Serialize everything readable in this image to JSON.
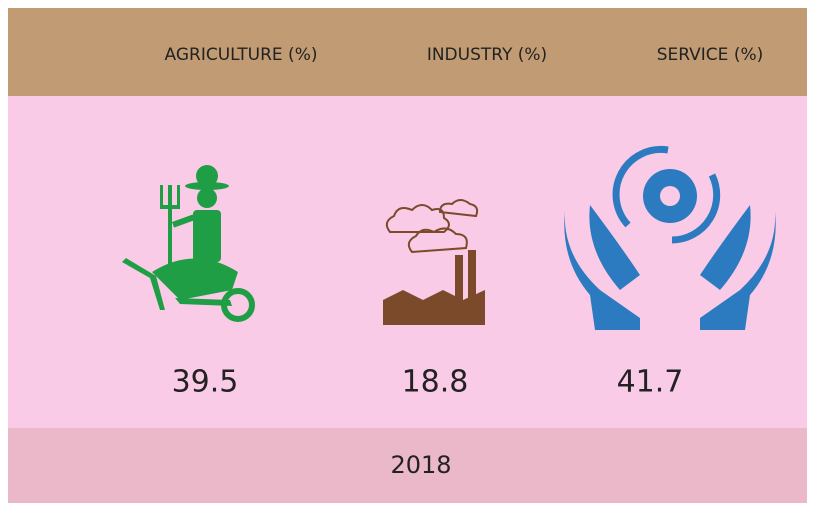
{
  "columns": [
    {
      "label": "AGRICULTURE (%)",
      "value": 39.5
    },
    {
      "label": "INDUSTRY (%)",
      "value": 18.8
    },
    {
      "label": "SERVICE (%)",
      "value": 41.7
    }
  ],
  "footer": "2018"
}
